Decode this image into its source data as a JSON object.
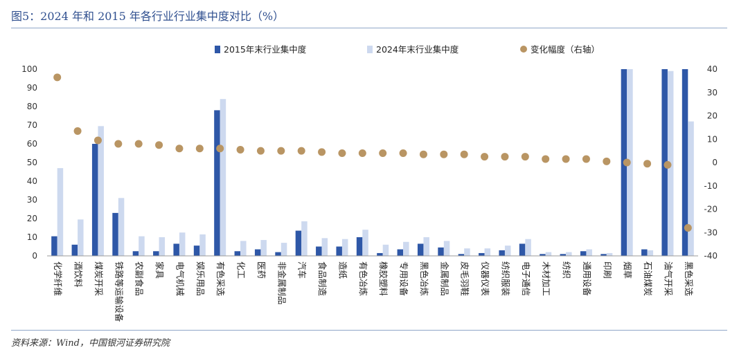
{
  "header": {
    "title": "图5：2024 年和 2015 年各行业行业集中度对比（%）"
  },
  "footer": {
    "source": "资料来源：Wind，中国银河证券研究院"
  },
  "colors": {
    "bar2015": "#2e57a7",
    "bar2024": "#cdd9ef",
    "dot": "#b99563",
    "rule": "#8fa6c8"
  },
  "chart_data": {
    "type": "bar",
    "categories": [
      "化学纤维",
      "酒饮料",
      "煤炭开采",
      "铁路等运输设备",
      "农副食品",
      "家具",
      "电气机械",
      "娱乐用品",
      "有色采选",
      "化工",
      "医药",
      "非金属制品",
      "汽车",
      "食品制造",
      "造纸",
      "有色冶炼",
      "橡胶塑料",
      "专用设备",
      "黑色冶炼",
      "金属制品",
      "皮毛羽鞋",
      "仪器仪表",
      "纺织服装",
      "电子通信",
      "木材加工",
      "纺织",
      "通用设备",
      "印刷",
      "烟草",
      "石油煤炭",
      "油气开采",
      "黑色采选"
    ],
    "series": [
      {
        "name": "2015年末行业集中度",
        "type": "bar",
        "axis": "left",
        "values": [
          10.5,
          6,
          60,
          23,
          2.5,
          2.5,
          6.5,
          5.5,
          78,
          2.5,
          3.5,
          2,
          13.5,
          5,
          5,
          10,
          1.5,
          3.5,
          6.5,
          4.5,
          1,
          1.5,
          3,
          6.5,
          1,
          1,
          2.5,
          1,
          100,
          3.5,
          100,
          100
        ]
      },
      {
        "name": "2024年末行业集中度",
        "type": "bar",
        "axis": "left",
        "values": [
          47,
          19.5,
          69.5,
          31,
          10.5,
          10,
          12.5,
          11.5,
          84,
          8,
          8.5,
          7,
          18.5,
          9.5,
          9,
          14,
          6,
          7.5,
          10,
          8,
          4,
          4,
          5.5,
          9,
          2,
          2,
          3.5,
          1.5,
          100,
          3,
          99,
          72
        ]
      },
      {
        "name": "变化幅度（右轴）",
        "type": "scatter",
        "axis": "right",
        "values": [
          36.5,
          13.5,
          9.5,
          8,
          8,
          7.5,
          6,
          6,
          6,
          5.5,
          5,
          5,
          5,
          4.5,
          4,
          4,
          4,
          4,
          3.5,
          3.5,
          3.5,
          2.5,
          2.5,
          2.5,
          1.5,
          1.5,
          1.5,
          0.5,
          0,
          -0.5,
          -1,
          -28
        ]
      }
    ],
    "ylim": [
      0,
      100
    ],
    "yticks": [
      0,
      10,
      20,
      30,
      40,
      50,
      60,
      70,
      80,
      90,
      100
    ],
    "y2lim": [
      -40,
      40
    ],
    "y2ticks": [
      -40,
      -30,
      -20,
      -10,
      0,
      10,
      20,
      30,
      40
    ],
    "legend": "top-center"
  }
}
